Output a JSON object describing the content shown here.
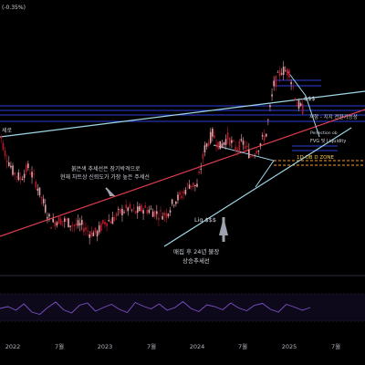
{
  "header": {
    "change": "(-0.35%)"
  },
  "chart_data": {
    "type": "line",
    "title": "",
    "x_ticks": [
      "2022",
      "7월",
      "2023",
      "7월",
      "2024",
      "7월",
      "2025",
      "7월"
    ],
    "price_series": {
      "name": "",
      "points": [
        [
          "2021-11",
          76
        ],
        [
          "2021-12",
          60
        ],
        [
          "2022-01",
          50
        ],
        [
          "2022-02",
          46
        ],
        [
          "2022-03",
          52
        ],
        [
          "2022-04",
          44
        ],
        [
          "2022-05",
          33
        ],
        [
          "2022-06",
          22
        ],
        [
          "2022-07",
          24
        ],
        [
          "2022-08",
          23
        ],
        [
          "2022-09",
          21
        ],
        [
          "2022-10",
          21
        ],
        [
          "2022-11",
          17
        ],
        [
          "2022-12",
          17
        ],
        [
          "2023-01",
          23
        ],
        [
          "2023-02",
          24
        ],
        [
          "2023-03",
          28
        ],
        [
          "2023-04",
          30
        ],
        [
          "2023-05",
          28
        ],
        [
          "2023-06",
          30
        ],
        [
          "2023-07",
          29
        ],
        [
          "2023-08",
          27
        ],
        [
          "2023-09",
          27
        ],
        [
          "2023-10",
          34
        ],
        [
          "2023-11",
          37
        ],
        [
          "2023-12",
          43
        ],
        [
          "2024-01",
          42
        ],
        [
          "2024-02",
          62
        ],
        [
          "2024-03",
          70
        ],
        [
          "2024-04",
          63
        ],
        [
          "2024-05",
          68
        ],
        [
          "2024-06",
          62
        ],
        [
          "2024-07",
          65
        ],
        [
          "2024-08",
          58
        ],
        [
          "2024-09",
          63
        ],
        [
          "2024-10",
          70
        ],
        [
          "2024-11",
          96
        ],
        [
          "2024-12",
          104
        ],
        [
          "2025-01",
          103
        ],
        [
          "2025-02",
          86
        ],
        [
          "2025-03",
          82
        ]
      ]
    },
    "oscillator": {
      "name": "",
      "values": [
        48,
        52,
        44,
        58,
        40,
        35,
        50,
        62,
        45,
        38,
        55,
        60,
        42,
        50,
        57,
        46,
        39,
        61,
        53,
        47,
        58,
        44,
        50,
        63,
        48,
        41,
        56,
        52,
        45,
        60,
        49,
        43,
        55,
        59,
        46,
        40,
        57,
        51,
        44,
        50
      ]
    },
    "annotations": [
      {
        "text": "붉은색 추세선은 장기박격으로"
      },
      {
        "text": "현재 차트상 신뢰도가 가장 높은 주세선"
      },
      {
        "text": "매집 후 24년 불장"
      },
      {
        "text": "상승추세선"
      },
      {
        "text": "Liq $$$"
      },
      {
        "text": "$$$"
      },
      {
        "text": "저항 - 지지 전환가능성"
      },
      {
        "text": "FVG 및 Liquidity"
      },
      {
        "text": "Perfection ob"
      },
      {
        "text": "1D OB D ZONE"
      },
      {
        "text": "세로"
      }
    ]
  },
  "colors": {
    "background": "#000000",
    "up": "#e8a0a8",
    "down": "#b5182b",
    "red_trendline": "#e03c50",
    "cyan_trendline": "#9fd8e8",
    "blue_level": "#2a3ed6",
    "osc_line": "#7d50c8",
    "arrow": "#9ea4ad",
    "orange": "#ff9a1f",
    "yellow_text": "#f2c94c"
  }
}
